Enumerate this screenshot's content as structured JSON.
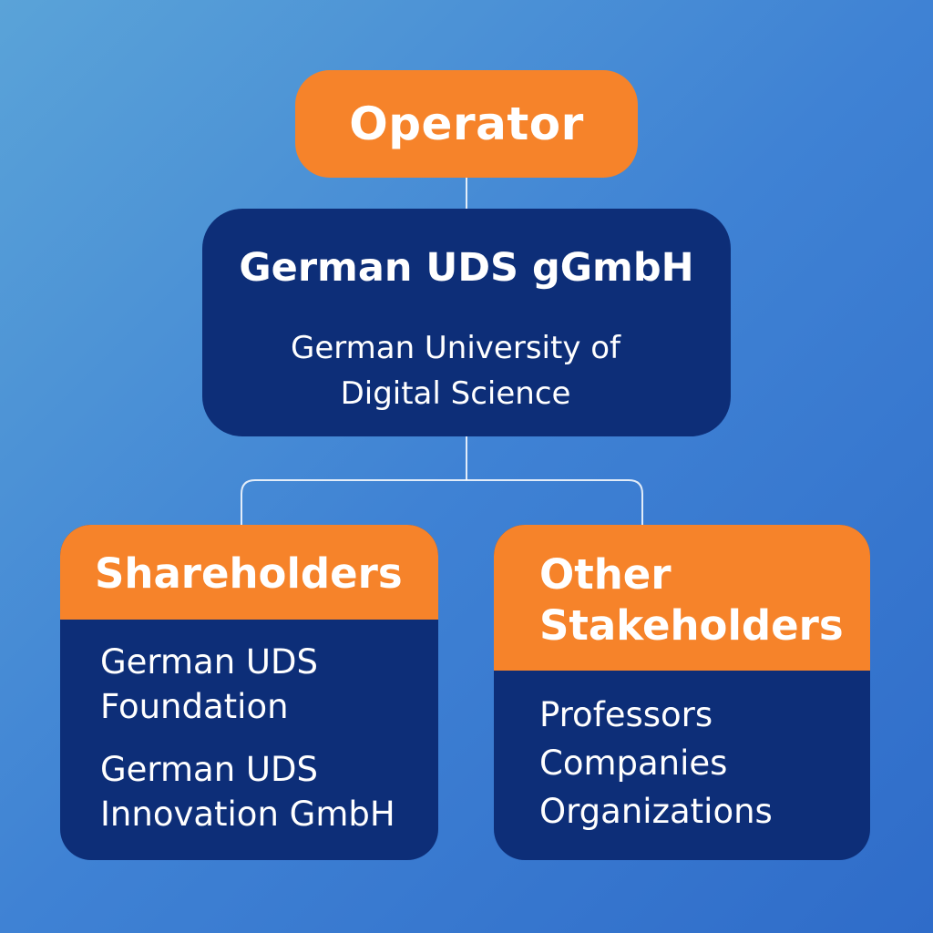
{
  "operator": {
    "label": "Operator"
  },
  "entity": {
    "title": "German UDS gGmbH",
    "subtitle": "German University of Digital Science"
  },
  "groups": [
    {
      "header": "Shareholders",
      "items": [
        "German UDS Foundation",
        "German UDS Innovation GmbH"
      ]
    },
    {
      "header": "Other Stakeholders",
      "items": [
        "Professors",
        "Companies",
        "Organizations"
      ]
    }
  ],
  "colors": {
    "orange": "#f6832a",
    "navy": "#0d2e78",
    "background_start": "#5aa3d8",
    "background_end": "#2f6cc9",
    "connector": "#ffffff"
  }
}
